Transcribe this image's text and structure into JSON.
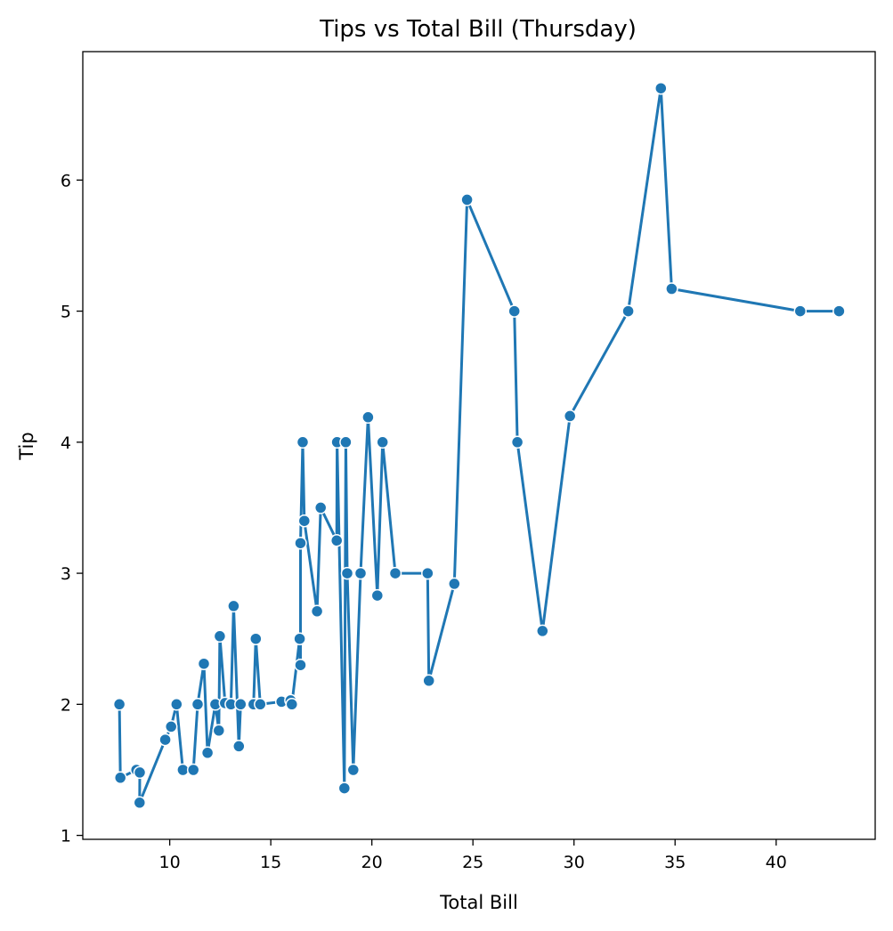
{
  "chart_data": {
    "type": "line",
    "title": "Tips vs Total Bill (Thursday)",
    "xlabel": "Total Bill",
    "ylabel": "Tip",
    "xlim": [
      5.7,
      44.9
    ],
    "ylim": [
      0.97,
      6.98
    ],
    "xticks": [
      10,
      15,
      20,
      25,
      30,
      35,
      40
    ],
    "yticks": [
      1,
      2,
      3,
      4,
      5,
      6
    ],
    "grid": false,
    "legend": "none",
    "markers": true,
    "colors": {
      "line": "#1f77b4",
      "marker_edge": "#ffffff"
    },
    "series": [
      {
        "x": [
          7.51,
          7.56,
          8.35,
          8.52,
          8.51,
          9.78,
          10.07,
          10.34,
          10.65,
          11.17,
          11.38,
          11.69,
          11.87,
          12.26,
          12.43,
          12.48,
          12.74,
          13.03,
          13.16,
          13.42,
          13.51,
          14.15,
          14.26,
          14.48,
          15.53,
          15.98,
          16.04,
          16.43,
          16.47,
          16.47,
          16.58,
          16.66,
          17.29,
          17.47,
          18.26,
          18.28,
          18.64,
          18.71,
          18.78,
          19.08,
          19.44,
          19.81,
          20.27,
          20.53,
          21.16,
          22.76,
          22.82,
          24.08,
          24.71,
          27.05,
          27.2,
          28.44,
          29.8,
          32.68,
          34.3,
          34.83,
          41.19,
          43.11
        ],
        "y": [
          2.0,
          1.44,
          1.5,
          1.48,
          1.25,
          1.73,
          1.83,
          2.0,
          1.5,
          1.5,
          2.0,
          2.31,
          1.63,
          2.0,
          1.8,
          2.52,
          2.01,
          2.0,
          2.75,
          1.68,
          2.0,
          2.0,
          2.5,
          2.0,
          2.02,
          2.03,
          2.0,
          2.5,
          2.3,
          3.23,
          4.0,
          3.4,
          2.71,
          3.5,
          3.25,
          4.0,
          1.36,
          4.0,
          3.0,
          1.5,
          3.0,
          4.19,
          2.83,
          4.0,
          3.0,
          3.0,
          2.18,
          2.92,
          5.85,
          5.0,
          4.0,
          2.56,
          4.2,
          5.0,
          6.7,
          5.17,
          5.0,
          5.0
        ]
      }
    ]
  }
}
